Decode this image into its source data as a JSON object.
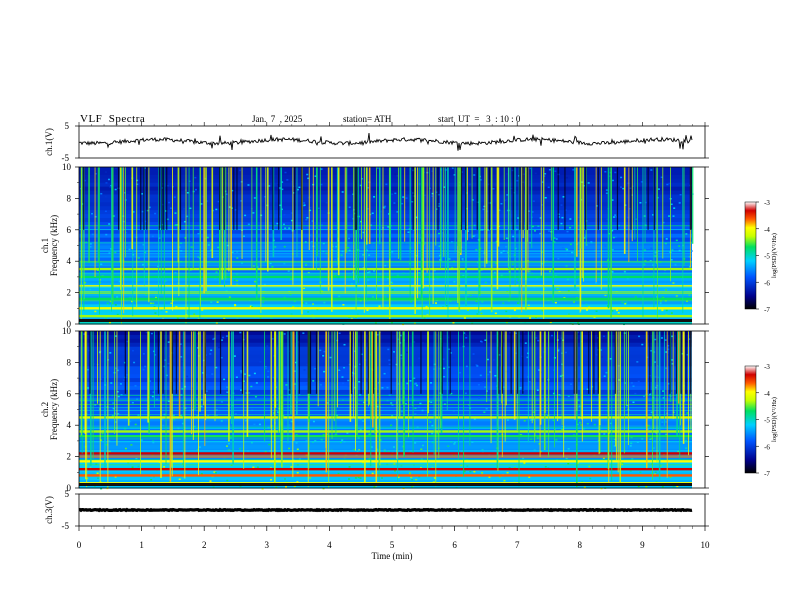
{
  "header": {
    "title": "VLF  Spectra",
    "date": "Jan.  7  , 2025",
    "station": "station= ATH",
    "start": "start  UT  =   3  : 10 : 0"
  },
  "chart_data": [
    {
      "type": "line",
      "panel": "ch1-waveform",
      "ylabel": "ch.1(V)",
      "ylim": [
        -5,
        5
      ],
      "yticks": [
        "5",
        "-5"
      ],
      "xlim": [
        0,
        10
      ],
      "series": [
        {
          "x_range": [
            0,
            9.83
          ],
          "level": 0.2,
          "noise": "broadband impulsive sferics"
        }
      ]
    },
    {
      "type": "heatmap",
      "panel": "ch1-spectrogram",
      "ylabel": "ch.1\nFrequency (kHz)",
      "ylim": [
        0,
        10
      ],
      "yticks": [
        "0",
        "2",
        "4",
        "6",
        "8",
        "10"
      ],
      "xlim": [
        0,
        10
      ],
      "colorbar": {
        "label": "log(PSD)(V²/Hz)",
        "range": [
          -7,
          -3
        ],
        "ticks": [
          "-3",
          "-4",
          "-5",
          "-6",
          "-7"
        ]
      },
      "lines_kHz": [
        0.2,
        0.5,
        1.0,
        1.6,
        2.0,
        2.4,
        3.0,
        3.5
      ]
    },
    {
      "type": "heatmap",
      "panel": "ch2-spectrogram",
      "ylabel": "ch.2\nFrequency (kHz)",
      "ylim": [
        0,
        10
      ],
      "yticks": [
        "0",
        "2",
        "4",
        "6",
        "8",
        "10"
      ],
      "xlim": [
        0,
        10
      ],
      "colorbar": {
        "label": "log(PSD)(V²/Hz)",
        "range": [
          -7,
          -3
        ],
        "ticks": [
          "-3",
          "-4",
          "-5",
          "-6",
          "-7"
        ]
      },
      "lines_kHz": [
        0.3,
        0.8,
        1.2,
        1.7,
        2.0,
        2.2,
        3.3,
        3.6,
        4.5
      ]
    },
    {
      "type": "line",
      "panel": "ch3-waveform",
      "ylabel": "ch.3(V)",
      "ylim": [
        -5,
        5
      ],
      "yticks": [
        "5",
        "-5"
      ],
      "xlim": [
        0,
        10
      ],
      "series": [
        {
          "x_range": [
            0,
            9.83
          ],
          "level": 0.0,
          "noise": "flat"
        }
      ]
    }
  ],
  "xaxis": {
    "label": "Time  (min)",
    "ticks": [
      "0",
      "1",
      "2",
      "3",
      "4",
      "5",
      "6",
      "7",
      "8",
      "9",
      "10"
    ]
  },
  "colors": {
    "frame": "#000000",
    "colormap": [
      "#000033",
      "#001a99",
      "#0055ff",
      "#00c8ff",
      "#33ff99",
      "#99ff00",
      "#ffff00",
      "#ff6600",
      "#d00000",
      "#ffffff"
    ]
  }
}
